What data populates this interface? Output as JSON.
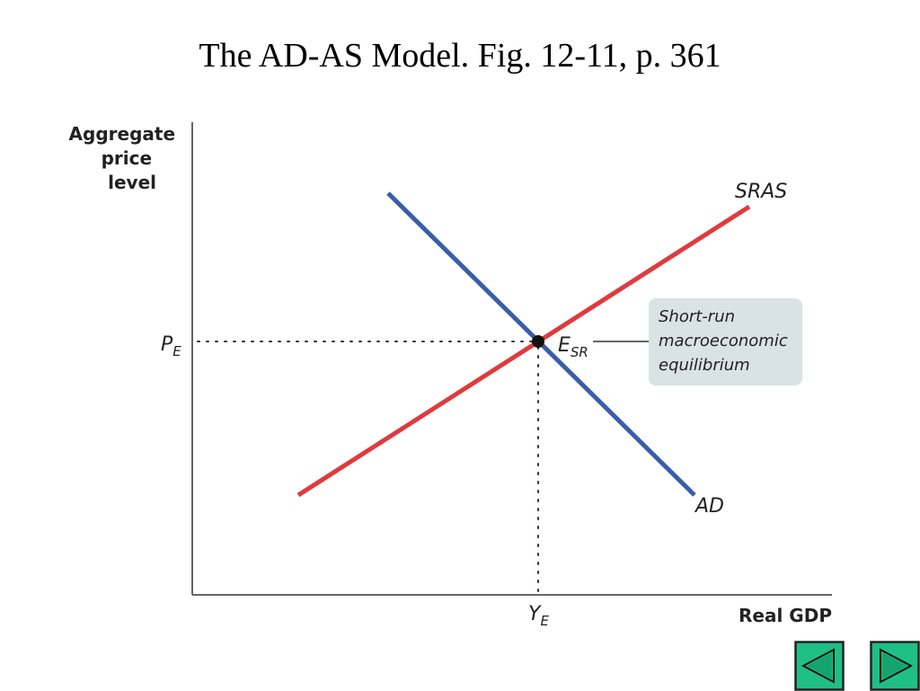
{
  "slide": {
    "title": "The AD-AS Model. Fig. 12-11, p. 361"
  },
  "diagram": {
    "y_axis_title": [
      "Aggregate",
      "price",
      "level"
    ],
    "x_axis_title": "Real GDP",
    "curves": {
      "sras": {
        "label": "SRAS",
        "color": "#e03a3e"
      },
      "ad": {
        "label": "AD",
        "color": "#3a5daa"
      }
    },
    "equilibrium": {
      "price_label": "P",
      "price_sub": "E",
      "output_label": "Y",
      "output_sub": "E",
      "point_label": "E",
      "point_sub": "SR",
      "callout_lines": [
        "Short-run",
        "macroeconomic",
        "equilibrium"
      ],
      "callout_bg": "#d9e4e2"
    }
  },
  "nav": {
    "prev_icon": "triangle-left-icon",
    "next_icon": "triangle-right-icon",
    "button_color": "#1fbf86"
  }
}
